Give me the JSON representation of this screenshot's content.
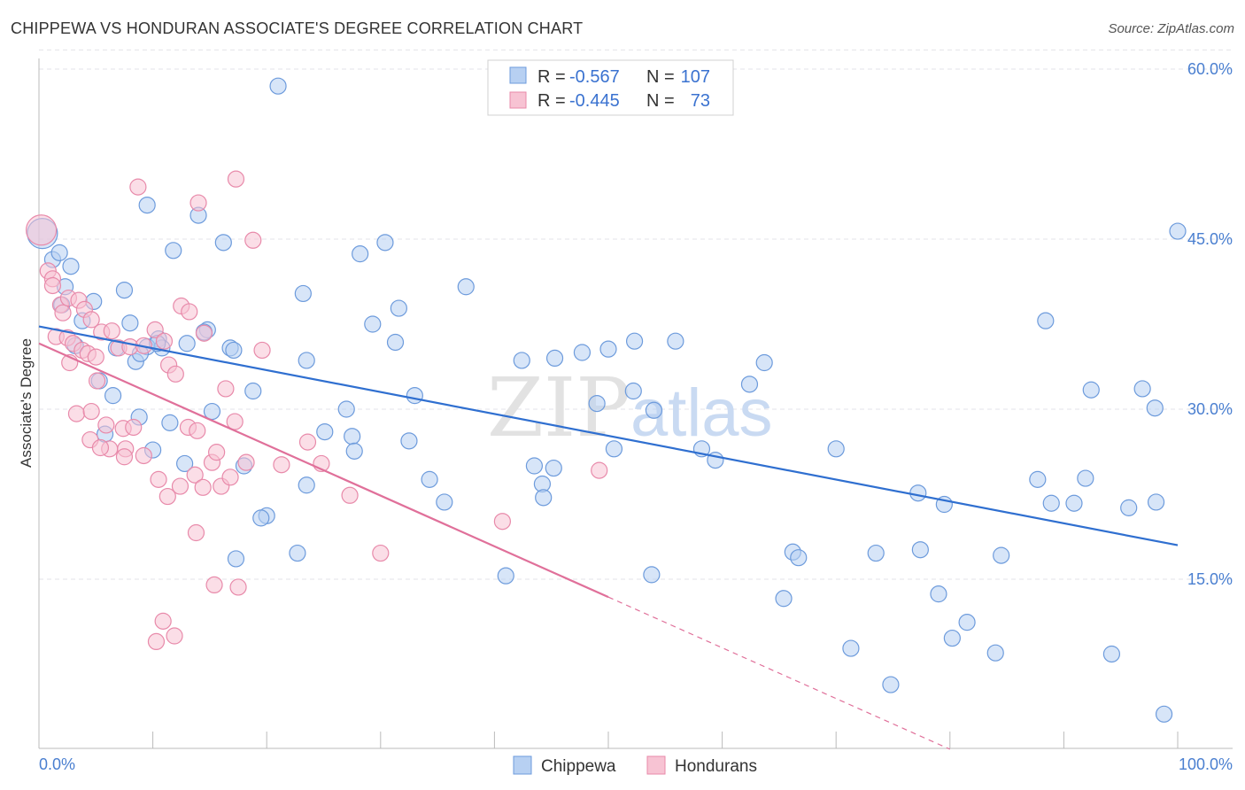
{
  "title": "CHIPPEWA VS HONDURAN ASSOCIATE'S DEGREE CORRELATION CHART",
  "source": "Source: ZipAtlas.com",
  "watermark": {
    "zip": "ZIP",
    "atlas": "atlas"
  },
  "colors": {
    "chippewa_fill": "#b7d0f2",
    "chippewa_stroke": "#6d9bdc",
    "chippewa_line": "#2f6fd0",
    "hondurans_fill": "#f7c3d3",
    "hondurans_stroke": "#e88aaa",
    "hondurans_line": "#e0709a",
    "tick_label": "#4a7fd0"
  },
  "legend": {
    "rows": [
      {
        "r_label": "R =",
        "r_value": "-0.567",
        "n_label": "N =",
        "n_value": "107"
      },
      {
        "r_label": "R =",
        "r_value": "-0.445",
        "n_label": "N =",
        "n_value": "73"
      }
    ]
  },
  "chart_data": {
    "type": "scatter",
    "title": "CHIPPEWA VS HONDURAN ASSOCIATE'S DEGREE CORRELATION CHART",
    "xlabel": "",
    "ylabel": "Associate's Degree",
    "xlim": [
      0,
      100
    ],
    "ylim": [
      0,
      62
    ],
    "x_tick_labels": [
      "0.0%",
      "100.0%"
    ],
    "y_ticks": [
      15,
      30,
      45,
      60
    ],
    "y_tick_labels": [
      "15.0%",
      "30.0%",
      "45.0%",
      "60.0%"
    ],
    "grid": true,
    "legend_position": "top-center",
    "series": [
      {
        "name": "Chippewa",
        "r": -0.567,
        "n": 107,
        "trend": {
          "x": [
            0,
            100
          ],
          "y": [
            37.3,
            18.0
          ],
          "dashed_from": null
        },
        "points": [
          [
            0.3,
            45.5
          ],
          [
            1.2,
            43.2
          ],
          [
            2.8,
            42.6
          ],
          [
            2.3,
            40.8
          ],
          [
            2.0,
            39.2
          ],
          [
            4.8,
            39.5
          ],
          [
            7.5,
            40.5
          ],
          [
            3.8,
            37.8
          ],
          [
            8.0,
            37.6
          ],
          [
            10.5,
            36.2
          ],
          [
            3.2,
            35.6
          ],
          [
            6.8,
            35.4
          ],
          [
            9.5,
            35.5
          ],
          [
            10.8,
            35.4
          ],
          [
            13.0,
            35.8
          ],
          [
            14.8,
            37.0
          ],
          [
            16.8,
            35.4
          ],
          [
            8.5,
            34.2
          ],
          [
            14.5,
            36.8
          ],
          [
            5.3,
            32.5
          ],
          [
            6.5,
            31.2
          ],
          [
            8.8,
            29.3
          ],
          [
            11.5,
            28.8
          ],
          [
            15.2,
            29.8
          ],
          [
            18.8,
            31.6
          ],
          [
            5.8,
            27.8
          ],
          [
            10.0,
            26.4
          ],
          [
            12.8,
            25.2
          ],
          [
            18.0,
            25.0
          ],
          [
            23.5,
            23.3
          ],
          [
            20.0,
            20.6
          ],
          [
            19.5,
            20.4
          ],
          [
            17.3,
            16.8
          ],
          [
            22.7,
            17.3
          ],
          [
            21.0,
            58.5
          ],
          [
            9.5,
            48.0
          ],
          [
            14.0,
            47.1
          ],
          [
            11.8,
            44.0
          ],
          [
            16.2,
            44.7
          ],
          [
            23.2,
            40.2
          ],
          [
            28.2,
            43.7
          ],
          [
            30.4,
            44.7
          ],
          [
            29.3,
            37.5
          ],
          [
            31.6,
            38.9
          ],
          [
            31.3,
            35.9
          ],
          [
            23.5,
            34.3
          ],
          [
            25.1,
            28.0
          ],
          [
            27.0,
            30.0
          ],
          [
            27.5,
            27.6
          ],
          [
            27.7,
            26.3
          ],
          [
            32.5,
            27.2
          ],
          [
            33.0,
            31.2
          ],
          [
            34.3,
            23.8
          ],
          [
            35.6,
            21.8
          ],
          [
            37.5,
            40.8
          ],
          [
            42.4,
            34.3
          ],
          [
            45.3,
            34.5
          ],
          [
            47.7,
            35.0
          ],
          [
            50.0,
            35.3
          ],
          [
            52.3,
            36.0
          ],
          [
            55.9,
            36.0
          ],
          [
            49.0,
            30.5
          ],
          [
            52.2,
            31.6
          ],
          [
            54.0,
            29.9
          ],
          [
            50.5,
            26.5
          ],
          [
            43.5,
            25.0
          ],
          [
            44.2,
            23.4
          ],
          [
            45.2,
            24.8
          ],
          [
            44.3,
            22.2
          ],
          [
            41.0,
            15.3
          ],
          [
            53.8,
            15.4
          ],
          [
            58.2,
            26.5
          ],
          [
            59.4,
            25.5
          ],
          [
            62.4,
            32.2
          ],
          [
            63.7,
            34.1
          ],
          [
            65.4,
            13.3
          ],
          [
            66.2,
            17.4
          ],
          [
            66.7,
            16.9
          ],
          [
            70.0,
            26.5
          ],
          [
            71.3,
            8.9
          ],
          [
            73.5,
            17.3
          ],
          [
            74.8,
            5.7
          ],
          [
            77.2,
            22.6
          ],
          [
            77.4,
            17.6
          ],
          [
            79.0,
            13.7
          ],
          [
            79.5,
            21.6
          ],
          [
            80.2,
            9.8
          ],
          [
            81.5,
            11.2
          ],
          [
            84.0,
            8.5
          ],
          [
            84.5,
            17.1
          ],
          [
            87.7,
            23.8
          ],
          [
            88.4,
            37.8
          ],
          [
            88.9,
            21.7
          ],
          [
            90.9,
            21.7
          ],
          [
            92.4,
            31.7
          ],
          [
            91.9,
            23.9
          ],
          [
            94.2,
            8.4
          ],
          [
            95.7,
            21.3
          ],
          [
            96.9,
            31.8
          ],
          [
            98.1,
            21.8
          ],
          [
            98.0,
            30.1
          ],
          [
            98.8,
            3.1
          ],
          [
            100.0,
            45.7
          ],
          [
            1.8,
            43.8
          ],
          [
            8.9,
            34.9
          ],
          [
            10.4,
            35.8
          ],
          [
            17.1,
            35.2
          ]
        ]
      },
      {
        "name": "Hondurans",
        "r": -0.445,
        "n": 73,
        "trend": {
          "x": [
            0,
            80
          ],
          "y": [
            35.8,
            0
          ],
          "dashed_from": 50
        },
        "points": [
          [
            0.2,
            45.8
          ],
          [
            0.8,
            42.2
          ],
          [
            1.2,
            41.5
          ],
          [
            1.2,
            40.9
          ],
          [
            1.9,
            39.2
          ],
          [
            2.1,
            38.5
          ],
          [
            2.6,
            39.8
          ],
          [
            3.5,
            39.6
          ],
          [
            4.0,
            38.8
          ],
          [
            4.6,
            37.9
          ],
          [
            1.5,
            36.4
          ],
          [
            2.5,
            36.3
          ],
          [
            3.0,
            35.8
          ],
          [
            3.8,
            35.2
          ],
          [
            4.3,
            34.9
          ],
          [
            5.0,
            34.6
          ],
          [
            2.7,
            34.1
          ],
          [
            5.5,
            36.8
          ],
          [
            6.4,
            36.9
          ],
          [
            7.0,
            35.4
          ],
          [
            8.0,
            35.5
          ],
          [
            9.2,
            35.6
          ],
          [
            10.2,
            37.0
          ],
          [
            11.0,
            36.0
          ],
          [
            11.4,
            33.9
          ],
          [
            12.0,
            33.1
          ],
          [
            12.5,
            39.1
          ],
          [
            13.2,
            38.6
          ],
          [
            14.5,
            36.7
          ],
          [
            5.1,
            32.5
          ],
          [
            3.3,
            29.6
          ],
          [
            4.6,
            29.8
          ],
          [
            5.9,
            28.6
          ],
          [
            7.4,
            28.3
          ],
          [
            8.3,
            28.4
          ],
          [
            4.5,
            27.3
          ],
          [
            6.2,
            26.5
          ],
          [
            7.6,
            26.5
          ],
          [
            5.4,
            26.6
          ],
          [
            7.5,
            25.8
          ],
          [
            9.2,
            25.9
          ],
          [
            10.5,
            23.8
          ],
          [
            11.3,
            22.3
          ],
          [
            12.4,
            23.2
          ],
          [
            13.1,
            28.4
          ],
          [
            13.9,
            28.1
          ],
          [
            13.7,
            24.2
          ],
          [
            14.4,
            23.1
          ],
          [
            15.2,
            25.3
          ],
          [
            15.6,
            26.2
          ],
          [
            16.0,
            23.2
          ],
          [
            16.8,
            24.0
          ],
          [
            17.2,
            28.9
          ],
          [
            18.2,
            25.3
          ],
          [
            19.6,
            35.2
          ],
          [
            21.3,
            25.1
          ],
          [
            23.6,
            27.1
          ],
          [
            24.8,
            25.2
          ],
          [
            27.3,
            22.4
          ],
          [
            30.0,
            17.3
          ],
          [
            40.7,
            20.1
          ],
          [
            49.2,
            24.6
          ],
          [
            8.7,
            49.6
          ],
          [
            14.0,
            48.2
          ],
          [
            17.3,
            50.3
          ],
          [
            18.8,
            44.9
          ],
          [
            13.8,
            19.1
          ],
          [
            15.4,
            14.5
          ],
          [
            17.5,
            14.3
          ],
          [
            10.9,
            11.3
          ],
          [
            11.9,
            10.0
          ],
          [
            10.3,
            9.5
          ],
          [
            16.4,
            31.8
          ]
        ]
      }
    ]
  },
  "bottom_legend": [
    "Chippewa",
    "Hondurans"
  ]
}
